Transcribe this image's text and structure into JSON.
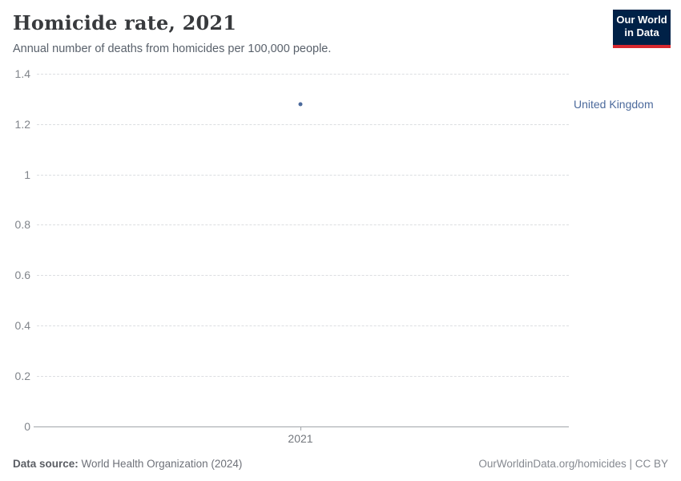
{
  "header": {
    "title": "Homicide rate, 2021",
    "subtitle": "Annual number of deaths from homicides per 100,000 people.",
    "logo": {
      "line1": "Our World",
      "line2": "in Data",
      "bg_color": "#002147",
      "accent_color": "#d7282f"
    }
  },
  "chart_data": {
    "type": "scatter",
    "title": "Homicide rate, 2021",
    "x": [
      2021
    ],
    "xticks": [
      "2021"
    ],
    "series": [
      {
        "name": "United Kingdom",
        "values": [
          1.28
        ],
        "color": "#4c6a9c"
      }
    ],
    "ylim": [
      0,
      1.4
    ],
    "yticks": [
      0,
      0.2,
      0.4,
      0.6,
      0.8,
      1,
      1.2,
      1.4
    ],
    "ytick_labels": [
      "0",
      "0.2",
      "0.4",
      "0.6",
      "0.8",
      "1",
      "1.2",
      "1.4"
    ],
    "xlabel": "",
    "ylabel": "",
    "grid": "horizontal-dashed",
    "legend_position": "label-right-of-point"
  },
  "footer": {
    "source_label": "Data source:",
    "source_value": "World Health Organization (2024)",
    "attribution": "OurWorldinData.org/homicides | CC BY"
  }
}
